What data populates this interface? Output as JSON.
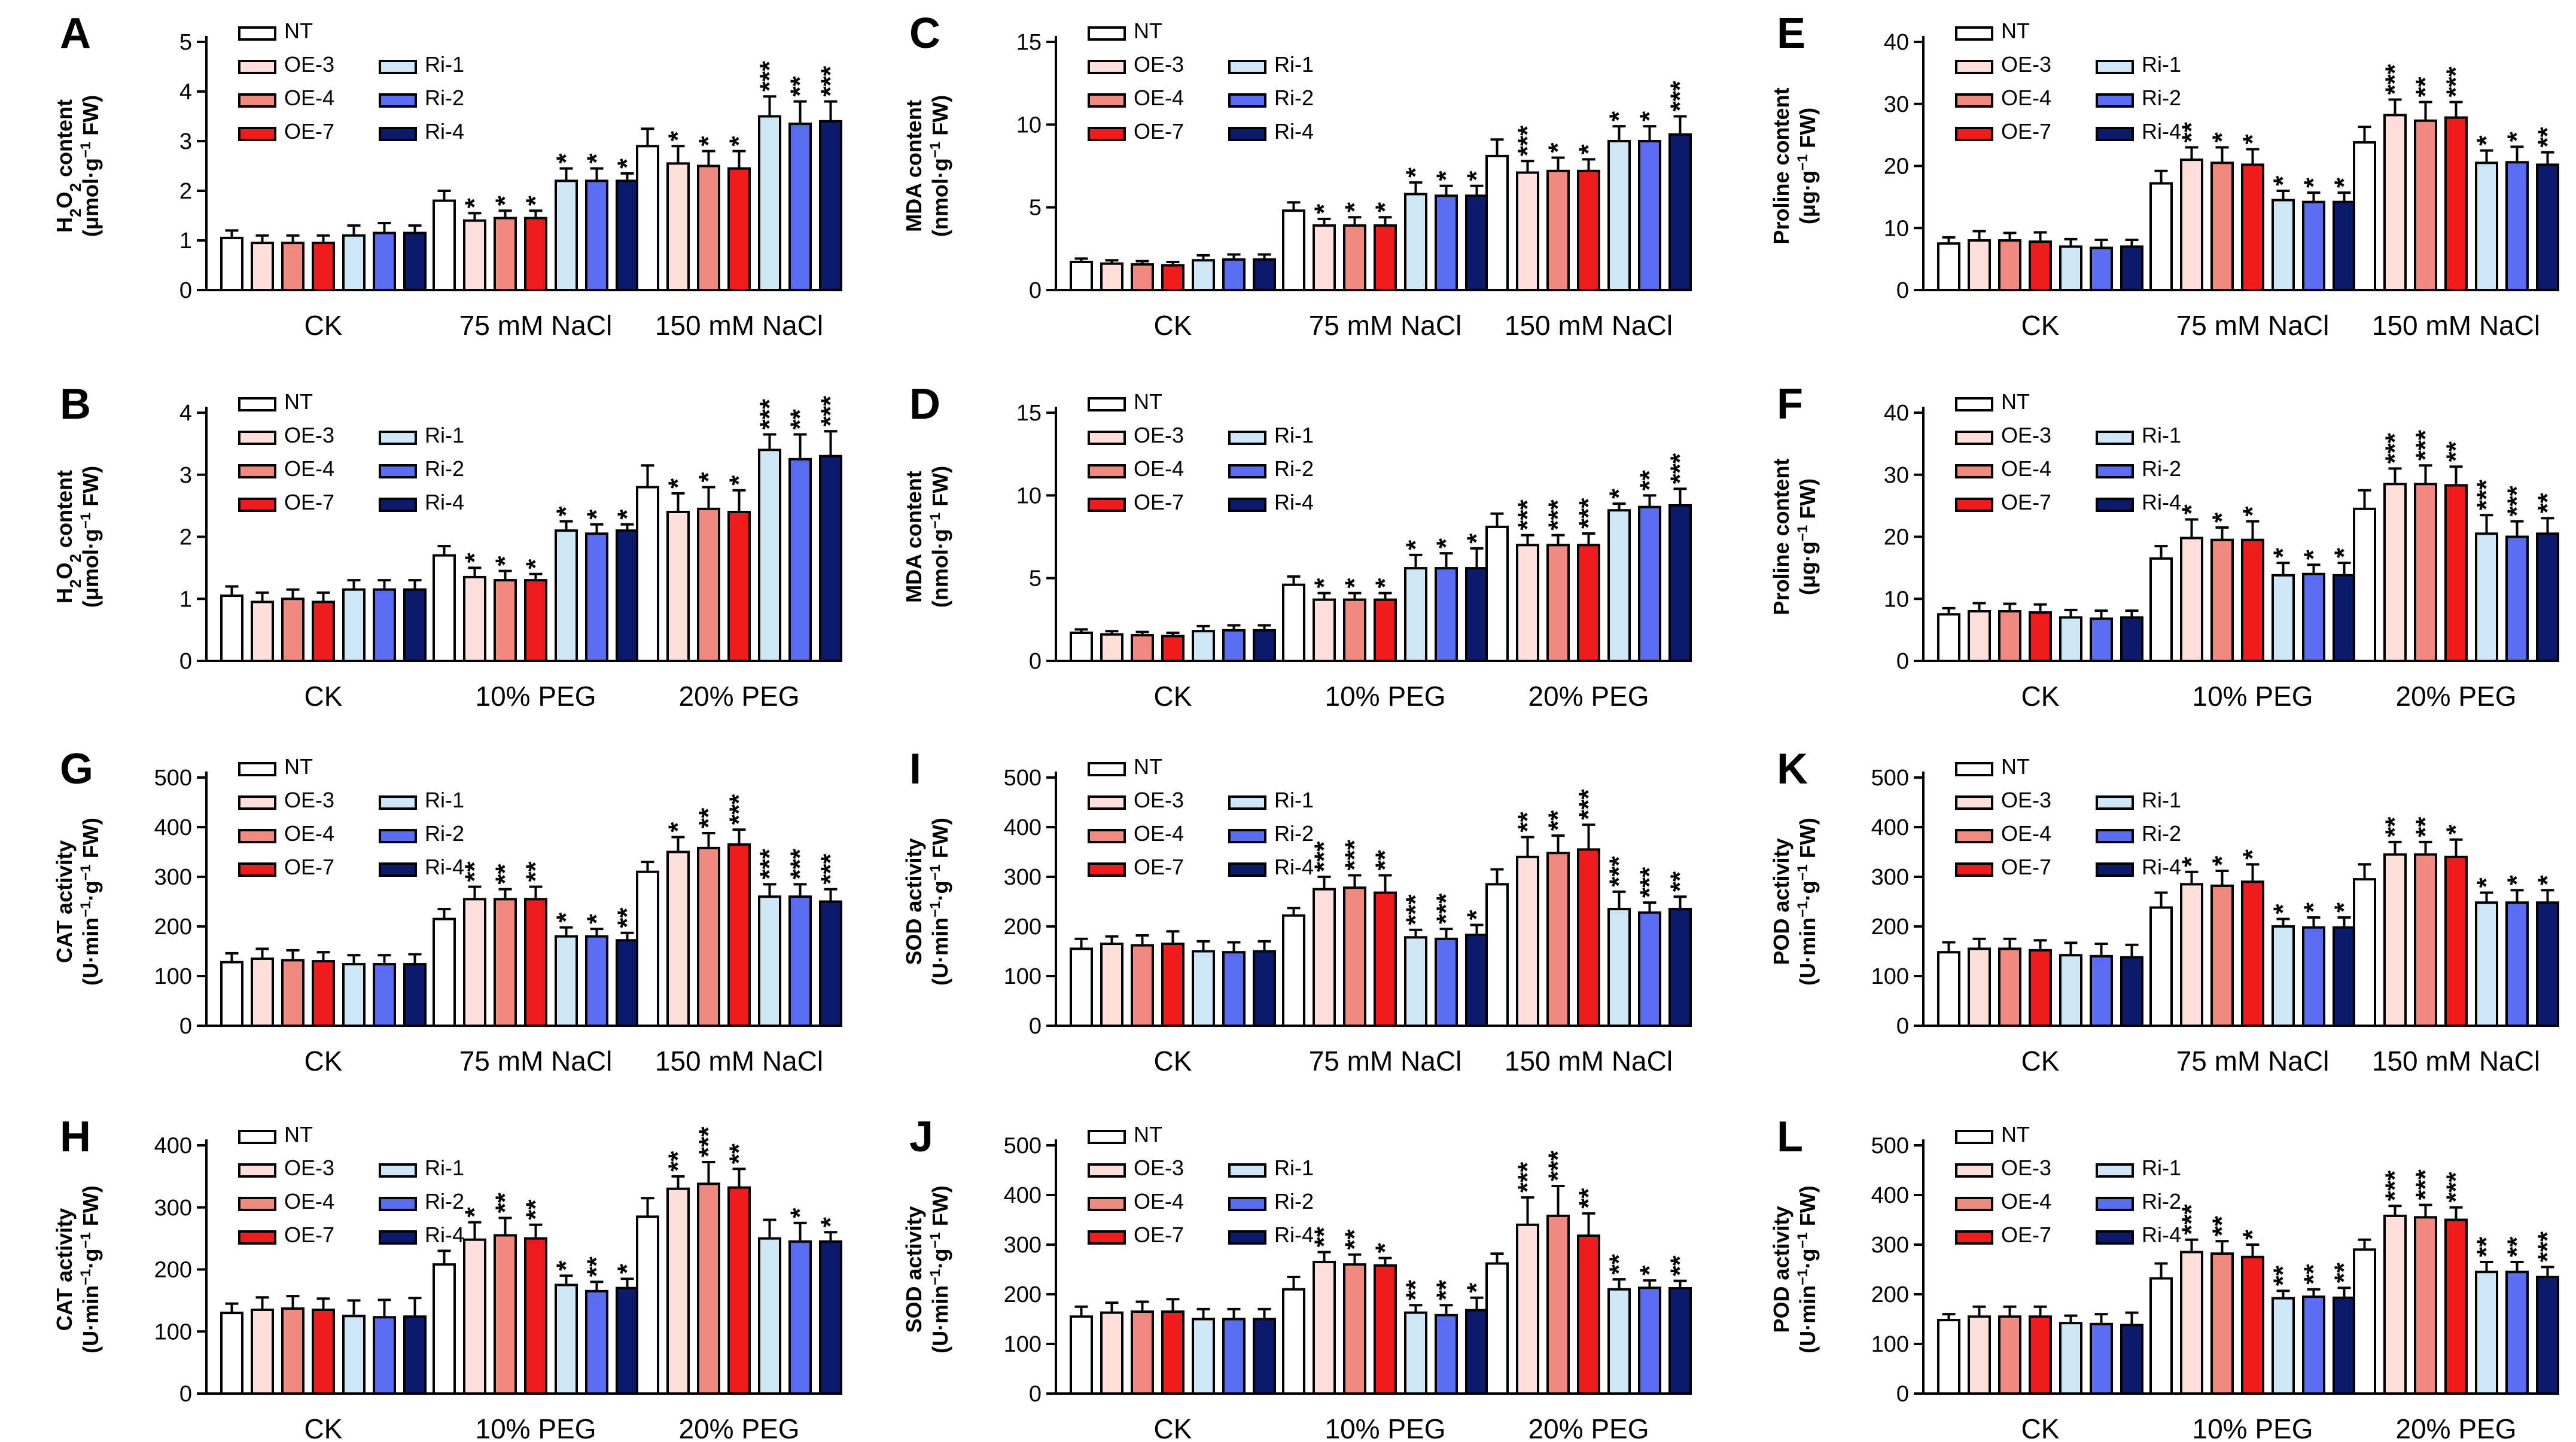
{
  "legend": [
    {
      "label": "NT",
      "color": "#ffffff"
    },
    {
      "label": "OE-3",
      "color": "#fde0dc"
    },
    {
      "label": "OE-4",
      "color": "#f08a80"
    },
    {
      "label": "OE-7",
      "color": "#ee1c1c"
    },
    {
      "label": "Ri-1",
      "color": "#cfe6f7"
    },
    {
      "label": "Ri-2",
      "color": "#5a6cf0"
    },
    {
      "label": "Ri-4",
      "color": "#0c1a6b"
    }
  ],
  "chart_data": [
    {
      "id": "A",
      "type": "bar",
      "ylabel": "H2O2 content",
      "ylabel_unit": "(μmol·g−1 FW)",
      "ylim": [
        0,
        5
      ],
      "yticks": [
        0,
        1,
        2,
        3,
        4,
        5
      ],
      "categories": [
        "CK",
        "75 mM NaCl",
        "150 mM NaCl"
      ],
      "values": [
        [
          1.05,
          0.95,
          0.95,
          0.95,
          1.1,
          1.15,
          1.15
        ],
        [
          1.8,
          1.4,
          1.45,
          1.45,
          2.2,
          2.2,
          2.2
        ],
        [
          2.9,
          2.55,
          2.5,
          2.45,
          3.5,
          3.35,
          3.4
        ]
      ],
      "errors": [
        [
          0.15,
          0.15,
          0.15,
          0.15,
          0.2,
          0.2,
          0.15
        ],
        [
          0.2,
          0.15,
          0.15,
          0.15,
          0.25,
          0.25,
          0.15
        ],
        [
          0.35,
          0.35,
          0.3,
          0.35,
          0.4,
          0.45,
          0.4
        ]
      ],
      "sig": [
        [
          "",
          "",
          "",
          "",
          "",
          "",
          ""
        ],
        [
          "",
          "*",
          "*",
          "*",
          "*",
          "*",
          "*"
        ],
        [
          "",
          "*",
          "*",
          "*",
          "***",
          "**",
          "***"
        ]
      ]
    },
    {
      "id": "C",
      "type": "bar",
      "ylabel": "MDA content",
      "ylabel_unit": "(nmol·g−1 FW)",
      "ylim": [
        0,
        15
      ],
      "yticks": [
        0,
        5,
        10,
        15
      ],
      "categories": [
        "CK",
        "75 mM NaCl",
        "150 mM NaCl"
      ],
      "values": [
        [
          1.7,
          1.6,
          1.55,
          1.5,
          1.8,
          1.85,
          1.85
        ],
        [
          4.8,
          3.9,
          3.9,
          3.9,
          5.8,
          5.7,
          5.7
        ],
        [
          8.1,
          7.1,
          7.2,
          7.2,
          9.0,
          9.0,
          9.4
        ]
      ],
      "errors": [
        [
          0.2,
          0.2,
          0.2,
          0.2,
          0.3,
          0.3,
          0.3
        ],
        [
          0.5,
          0.4,
          0.5,
          0.5,
          0.7,
          0.6,
          0.6
        ],
        [
          1.0,
          0.7,
          0.8,
          0.7,
          0.9,
          0.9,
          1.1
        ]
      ],
      "sig": [
        [
          "",
          "",
          "",
          "",
          "",
          "",
          ""
        ],
        [
          "",
          "*",
          "*",
          "*",
          "*",
          "*",
          "*"
        ],
        [
          "",
          "***",
          "*",
          "*",
          "*",
          "*",
          "***"
        ]
      ]
    },
    {
      "id": "E",
      "type": "bar",
      "ylabel": "Proline content",
      "ylabel_unit": "(μg·g−1 FW)",
      "ylim": [
        0,
        40
      ],
      "yticks": [
        0,
        10,
        20,
        30,
        40
      ],
      "categories": [
        "CK",
        "75 mM NaCl",
        "150 mM NaCl"
      ],
      "values": [
        [
          7.5,
          8.0,
          8.0,
          7.8,
          7.0,
          6.8,
          7.0
        ],
        [
          17.2,
          21.0,
          20.5,
          20.2,
          14.5,
          14.2,
          14.2
        ],
        [
          23.8,
          28.2,
          27.3,
          27.8,
          20.5,
          20.6,
          20.2
        ]
      ],
      "errors": [
        [
          1.0,
          1.5,
          1.2,
          1.5,
          1.2,
          1.3,
          1.1
        ],
        [
          2.0,
          2.0,
          2.5,
          2.5,
          1.5,
          1.5,
          1.5
        ],
        [
          2.5,
          2.5,
          3.0,
          2.5,
          2.0,
          2.5,
          2.0
        ]
      ],
      "sig": [
        [
          "",
          "",
          "",
          "",
          "",
          "",
          ""
        ],
        [
          "",
          "**",
          "*",
          "*",
          "*",
          "*",
          "*"
        ],
        [
          "",
          "***",
          "**",
          "***",
          "*",
          "*",
          "**"
        ]
      ]
    },
    {
      "id": "B",
      "type": "bar",
      "ylabel": "H2O2 content",
      "ylabel_unit": "(μmol·g−1 FW)",
      "ylim": [
        0,
        4
      ],
      "yticks": [
        0,
        1,
        2,
        3,
        4
      ],
      "categories": [
        "CK",
        "10% PEG",
        "20% PEG"
      ],
      "values": [
        [
          1.05,
          0.95,
          1.0,
          0.95,
          1.15,
          1.15,
          1.15
        ],
        [
          1.7,
          1.35,
          1.3,
          1.3,
          2.1,
          2.05,
          2.1
        ],
        [
          2.8,
          2.4,
          2.45,
          2.4,
          3.4,
          3.25,
          3.3
        ]
      ],
      "errors": [
        [
          0.15,
          0.15,
          0.15,
          0.15,
          0.15,
          0.15,
          0.15
        ],
        [
          0.15,
          0.15,
          0.15,
          0.1,
          0.15,
          0.15,
          0.1
        ],
        [
          0.35,
          0.3,
          0.35,
          0.35,
          0.25,
          0.4,
          0.4
        ]
      ],
      "sig": [
        [
          "",
          "",
          "",
          "",
          "",
          "",
          ""
        ],
        [
          "",
          "*",
          "*",
          "*",
          "*",
          "*",
          "*"
        ],
        [
          "",
          "*",
          "*",
          "*",
          "***",
          "**",
          "***"
        ]
      ]
    },
    {
      "id": "D",
      "type": "bar",
      "ylabel": "MDA content",
      "ylabel_unit": "(nmol·g−1 FW)",
      "ylim": [
        0,
        15
      ],
      "yticks": [
        0,
        5,
        10,
        15
      ],
      "categories": [
        "CK",
        "10% PEG",
        "20% PEG"
      ],
      "values": [
        [
          1.7,
          1.6,
          1.55,
          1.5,
          1.8,
          1.85,
          1.85
        ],
        [
          4.6,
          3.7,
          3.7,
          3.7,
          5.6,
          5.6,
          5.6
        ],
        [
          8.1,
          7.0,
          7.0,
          7.0,
          9.1,
          9.3,
          9.4
        ]
      ],
      "errors": [
        [
          0.2,
          0.2,
          0.2,
          0.2,
          0.3,
          0.3,
          0.3
        ],
        [
          0.5,
          0.4,
          0.4,
          0.4,
          0.8,
          0.9,
          1.2
        ],
        [
          0.8,
          0.6,
          0.6,
          0.7,
          0.4,
          0.7,
          1.0
        ]
      ],
      "sig": [
        [
          "",
          "",
          "",
          "",
          "",
          "",
          ""
        ],
        [
          "",
          "*",
          "*",
          "*",
          "*",
          "*",
          "*"
        ],
        [
          "",
          "***",
          "***",
          "***",
          "*",
          "**",
          "***"
        ]
      ]
    },
    {
      "id": "F",
      "type": "bar",
      "ylabel": "Proline content",
      "ylabel_unit": "(μg·g−1 FW)",
      "ylim": [
        0,
        40
      ],
      "yticks": [
        0,
        10,
        20,
        30,
        40
      ],
      "categories": [
        "CK",
        "10% PEG",
        "20% PEG"
      ],
      "values": [
        [
          7.5,
          8.0,
          8.0,
          7.8,
          7.0,
          6.8,
          7.0
        ],
        [
          16.5,
          19.8,
          19.5,
          19.5,
          13.8,
          14.0,
          13.8
        ],
        [
          24.5,
          28.5,
          28.5,
          28.3,
          20.5,
          20.0,
          20.5
        ]
      ],
      "errors": [
        [
          1.0,
          1.3,
          1.2,
          1.3,
          1.2,
          1.3,
          1.1
        ],
        [
          2.0,
          3.0,
          2.0,
          3.0,
          2.0,
          1.5,
          2.0
        ],
        [
          3.0,
          2.5,
          3.0,
          3.0,
          3.0,
          2.5,
          2.5
        ]
      ],
      "sig": [
        [
          "",
          "",
          "",
          "",
          "",
          "",
          ""
        ],
        [
          "",
          "*",
          "*",
          "*",
          "*",
          "*",
          "*"
        ],
        [
          "",
          "***",
          "***",
          "**",
          "***",
          "***",
          "**"
        ]
      ]
    },
    {
      "id": "G",
      "type": "bar",
      "ylabel": "CAT activity",
      "ylabel_unit": "(U·min−1·g−1 FW)",
      "ylim": [
        0,
        500
      ],
      "yticks": [
        0,
        100,
        200,
        300,
        400,
        500
      ],
      "categories": [
        "CK",
        "75 mM NaCl",
        "150 mM NaCl"
      ],
      "values": [
        [
          128,
          135,
          132,
          130,
          124,
          124,
          124
        ],
        [
          215,
          255,
          255,
          255,
          180,
          180,
          172
        ],
        [
          310,
          350,
          358,
          365,
          260,
          260,
          250
        ]
      ],
      "errors": [
        [
          18,
          20,
          20,
          18,
          18,
          18,
          20
        ],
        [
          20,
          25,
          20,
          25,
          18,
          15,
          15
        ],
        [
          20,
          30,
          30,
          30,
          25,
          25,
          25
        ]
      ],
      "sig": [
        [
          "",
          "",
          "",
          "",
          "",
          "",
          ""
        ],
        [
          "",
          "**",
          "**",
          "**",
          "*",
          "*",
          "**"
        ],
        [
          "",
          "*",
          "**",
          "***",
          "***",
          "***",
          "***"
        ]
      ]
    },
    {
      "id": "I",
      "type": "bar",
      "ylabel": "SOD activity",
      "ylabel_unit": "(U·min−1·g−1 FW)",
      "ylim": [
        0,
        500
      ],
      "yticks": [
        0,
        100,
        200,
        300,
        400,
        500
      ],
      "categories": [
        "CK",
        "75 mM NaCl",
        "150 mM NaCl"
      ],
      "values": [
        [
          155,
          165,
          162,
          165,
          150,
          148,
          150
        ],
        [
          222,
          275,
          278,
          268,
          178,
          175,
          183
        ],
        [
          285,
          340,
          348,
          355,
          235,
          228,
          235
        ]
      ],
      "errors": [
        [
          20,
          15,
          20,
          25,
          20,
          20,
          20
        ],
        [
          15,
          25,
          25,
          35,
          15,
          20,
          20
        ],
        [
          30,
          40,
          35,
          50,
          35,
          20,
          25
        ]
      ],
      "sig": [
        [
          "",
          "",
          "",
          "",
          "",
          "",
          ""
        ],
        [
          "",
          "***",
          "***",
          "**",
          "***",
          "***",
          "*"
        ],
        [
          "",
          "**",
          "**",
          "***",
          "***",
          "***",
          "**"
        ]
      ]
    },
    {
      "id": "K",
      "type": "bar",
      "ylabel": "POD activity",
      "ylabel_unit": "(U·min−1·g−1 FW)",
      "ylim": [
        0,
        500
      ],
      "yticks": [
        0,
        100,
        200,
        300,
        400,
        500
      ],
      "categories": [
        "CK",
        "75 mM NaCl",
        "150 mM NaCl"
      ],
      "values": [
        [
          148,
          155,
          155,
          152,
          142,
          140,
          138
        ],
        [
          238,
          285,
          282,
          290,
          200,
          198,
          198
        ],
        [
          295,
          345,
          345,
          340,
          248,
          248,
          248
        ]
      ],
      "errors": [
        [
          20,
          20,
          20,
          20,
          25,
          25,
          25
        ],
        [
          30,
          25,
          30,
          35,
          15,
          20,
          20
        ],
        [
          30,
          25,
          25,
          35,
          20,
          25,
          25
        ]
      ],
      "sig": [
        [
          "",
          "",
          "",
          "",
          "",
          "",
          ""
        ],
        [
          "",
          "*",
          "*",
          "*",
          "*",
          "*",
          "*"
        ],
        [
          "",
          "**",
          "**",
          "*",
          "*",
          "*",
          "*"
        ]
      ]
    },
    {
      "id": "H",
      "type": "bar",
      "ylabel": "CAT activity",
      "ylabel_unit": "(U·min−1·g−1 FW)",
      "ylim": [
        0,
        400
      ],
      "yticks": [
        0,
        100,
        200,
        300,
        400
      ],
      "categories": [
        "CK",
        "10% PEG",
        "20% PEG"
      ],
      "values": [
        [
          130,
          135,
          137,
          135,
          125,
          123,
          124
        ],
        [
          208,
          248,
          255,
          250,
          175,
          165,
          170
        ],
        [
          285,
          330,
          338,
          332,
          250,
          245,
          245
        ]
      ],
      "errors": [
        [
          15,
          20,
          20,
          18,
          25,
          28,
          30
        ],
        [
          22,
          28,
          28,
          22,
          15,
          15,
          15
        ],
        [
          30,
          20,
          35,
          30,
          30,
          30,
          15
        ]
      ],
      "sig": [
        [
          "",
          "",
          "",
          "",
          "",
          "",
          ""
        ],
        [
          "",
          "*",
          "**",
          "**",
          "*",
          "**",
          "*"
        ],
        [
          "",
          "**",
          "***",
          "**",
          "",
          "*",
          "*"
        ]
      ]
    },
    {
      "id": "J",
      "type": "bar",
      "ylabel": "SOD activity",
      "ylabel_unit": "(U·min−1·g−1 FW)",
      "ylim": [
        0,
        500
      ],
      "yticks": [
        0,
        100,
        200,
        300,
        400,
        500
      ],
      "categories": [
        "CK",
        "10% PEG",
        "20% PEG"
      ],
      "values": [
        [
          155,
          163,
          165,
          165,
          150,
          150,
          150
        ],
        [
          210,
          265,
          260,
          258,
          163,
          158,
          168
        ],
        [
          262,
          340,
          358,
          318,
          210,
          213,
          212
        ]
      ],
      "errors": [
        [
          20,
          20,
          20,
          25,
          20,
          20,
          20
        ],
        [
          25,
          20,
          20,
          15,
          15,
          20,
          25
        ],
        [
          20,
          55,
          60,
          45,
          20,
          15,
          15
        ]
      ],
      "sig": [
        [
          "",
          "",
          "",
          "",
          "",
          "",
          ""
        ],
        [
          "",
          "**",
          "**",
          "*",
          "**",
          "**",
          "*"
        ],
        [
          "",
          "***",
          "***",
          "**",
          "**",
          "*",
          "**"
        ]
      ]
    },
    {
      "id": "L",
      "type": "bar",
      "ylabel": "POD activity",
      "ylabel_unit": "(U·min−1·g−1 FW)",
      "ylim": [
        0,
        500
      ],
      "yticks": [
        0,
        100,
        200,
        300,
        400,
        500
      ],
      "categories": [
        "CK",
        "10% PEG",
        "20% PEG"
      ],
      "values": [
        [
          148,
          155,
          155,
          155,
          142,
          140,
          138
        ],
        [
          232,
          285,
          282,
          275,
          192,
          195,
          193
        ],
        [
          290,
          358,
          355,
          350,
          245,
          245,
          235
        ]
      ],
      "errors": [
        [
          12,
          20,
          20,
          20,
          15,
          20,
          25
        ],
        [
          30,
          25,
          25,
          25,
          15,
          15,
          20
        ],
        [
          20,
          20,
          25,
          25,
          20,
          20,
          20
        ]
      ],
      "sig": [
        [
          "",
          "",
          "",
          "",
          "",
          "",
          ""
        ],
        [
          "",
          "***",
          "**",
          "*",
          "**",
          "**",
          "**"
        ],
        [
          "",
          "***",
          "***",
          "***",
          "**",
          "**",
          "***"
        ]
      ]
    }
  ]
}
